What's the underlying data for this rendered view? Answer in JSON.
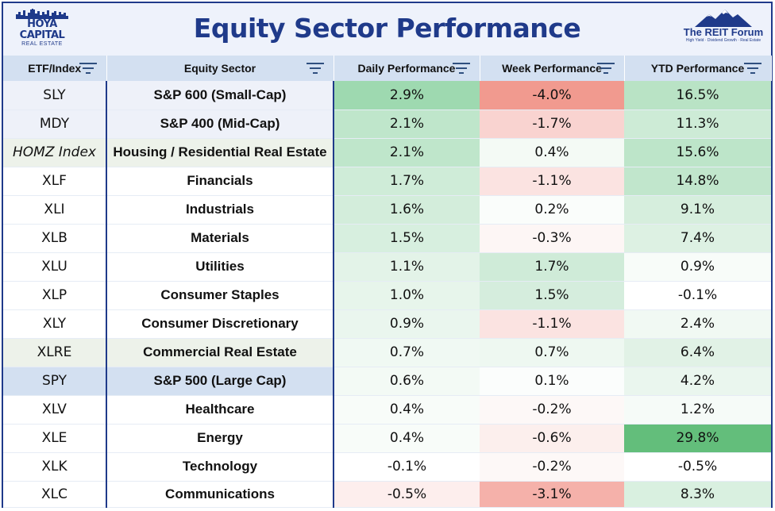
{
  "header": {
    "title": "Equity Sector Performance",
    "left_logo": {
      "brand": "HOYA CAPITAL",
      "sub": "REAL ESTATE",
      "icon": "skyline-icon"
    },
    "right_logo": {
      "brand": "The REIT Forum",
      "sub": "High Yield · Dividend Growth · Real Estate",
      "icon": "mountain-icon"
    }
  },
  "columns": [
    {
      "label": "ETF/Index"
    },
    {
      "label": "Equity Sector"
    },
    {
      "label": "Daily Performance"
    },
    {
      "label": "Week Performance"
    },
    {
      "label": "YTD Performance"
    }
  ],
  "colors": {
    "header_blue": "#1f3a8a",
    "column_header_bg": "#d3e0f1",
    "positive_strong": "#63be7b",
    "negative_strong": "#f8696b"
  },
  "rows": [
    {
      "ticker": "SLY",
      "sector": "S&P 600 (Small-Cap)",
      "daily": "2.9%",
      "week": "-4.0%",
      "ytd": "16.5%",
      "label_bg": "#eef1f9",
      "italic": false,
      "daily_bg": "#9ed9b0",
      "week_bg": "#f19a8f",
      "ytd_bg": "#b9e3c5"
    },
    {
      "ticker": "MDY",
      "sector": "S&P 400 (Mid-Cap)",
      "daily": "2.1%",
      "week": "-1.7%",
      "ytd": "11.3%",
      "label_bg": "#eef1f9",
      "italic": false,
      "daily_bg": "#bfe6cb",
      "week_bg": "#f9d3d0",
      "ytd_bg": "#cdebd6"
    },
    {
      "ticker": "HOMZ Index",
      "sector": "Housing / Residential Real Estate",
      "daily": "2.1%",
      "week": "0.4%",
      "ytd": "15.6%",
      "label_bg": "#edf2ea",
      "italic": true,
      "daily_bg": "#bfe6cb",
      "week_bg": "#f4faf5",
      "ytd_bg": "#bde5c9"
    },
    {
      "ticker": "XLF",
      "sector": "Financials",
      "daily": "1.7%",
      "week": "-1.1%",
      "ytd": "14.8%",
      "label_bg": "#ffffff",
      "italic": false,
      "daily_bg": "#cfecd8",
      "week_bg": "#fbe3e1",
      "ytd_bg": "#c1e6cc"
    },
    {
      "ticker": "XLI",
      "sector": "Industrials",
      "daily": "1.6%",
      "week": "0.2%",
      "ytd": "9.1%",
      "label_bg": "#ffffff",
      "italic": false,
      "daily_bg": "#d3eddb",
      "week_bg": "#fafdfb",
      "ytd_bg": "#d6eedd"
    },
    {
      "ticker": "XLB",
      "sector": "Materials",
      "daily": "1.5%",
      "week": "-0.3%",
      "ytd": "7.4%",
      "label_bg": "#ffffff",
      "italic": false,
      "daily_bg": "#d7efdf",
      "week_bg": "#fdf6f5",
      "ytd_bg": "#ddf1e3"
    },
    {
      "ticker": "XLU",
      "sector": "Utilities",
      "daily": "1.1%",
      "week": "1.7%",
      "ytd": "0.9%",
      "label_bg": "#ffffff",
      "italic": false,
      "daily_bg": "#e3f3e8",
      "week_bg": "#cfebd8",
      "ytd_bg": "#f8fcf9"
    },
    {
      "ticker": "XLP",
      "sector": "Consumer Staples",
      "daily": "1.0%",
      "week": "1.5%",
      "ytd": "-0.1%",
      "label_bg": "#ffffff",
      "italic": false,
      "daily_bg": "#e7f5eb",
      "week_bg": "#d5eddd",
      "ytd_bg": "#ffffff"
    },
    {
      "ticker": "XLY",
      "sector": "Consumer Discretionary",
      "daily": "0.9%",
      "week": "-1.1%",
      "ytd": "2.4%",
      "label_bg": "#ffffff",
      "italic": false,
      "daily_bg": "#eaf6ee",
      "week_bg": "#fbe3e1",
      "ytd_bg": "#f1f9f3"
    },
    {
      "ticker": "XLRE",
      "sector": "Commercial Real Estate",
      "daily": "0.7%",
      "week": "0.7%",
      "ytd": "6.4%",
      "label_bg": "#edf2ea",
      "italic": false,
      "daily_bg": "#f0f9f3",
      "week_bg": "#eef8f1",
      "ytd_bg": "#e1f2e6"
    },
    {
      "ticker": "SPY",
      "sector": "S&P 500 (Large Cap)",
      "daily": "0.6%",
      "week": "0.1%",
      "ytd": "4.2%",
      "label_bg": "#d3e0f1",
      "italic": false,
      "daily_bg": "#f3faf5",
      "week_bg": "#fbfdfc",
      "ytd_bg": "#eaf6ee"
    },
    {
      "ticker": "XLV",
      "sector": "Healthcare",
      "daily": "0.4%",
      "week": "-0.2%",
      "ytd": "1.2%",
      "label_bg": "#ffffff",
      "italic": false,
      "daily_bg": "#f8fcf9",
      "week_bg": "#fdf8f7",
      "ytd_bg": "#f6fbf8"
    },
    {
      "ticker": "XLE",
      "sector": "Energy",
      "daily": "0.4%",
      "week": "-0.6%",
      "ytd": "29.8%",
      "label_bg": "#ffffff",
      "italic": false,
      "daily_bg": "#f8fcf9",
      "week_bg": "#fcefed",
      "ytd_bg": "#63be7b"
    },
    {
      "ticker": "XLK",
      "sector": "Technology",
      "daily": "-0.1%",
      "week": "-0.2%",
      "ytd": "-0.5%",
      "label_bg": "#ffffff",
      "italic": false,
      "daily_bg": "#ffffff",
      "week_bg": "#fdf8f7",
      "ytd_bg": "#ffffff"
    },
    {
      "ticker": "XLC",
      "sector": "Communications",
      "daily": "-0.5%",
      "week": "-3.1%",
      "ytd": "8.3%",
      "label_bg": "#ffffff",
      "italic": false,
      "daily_bg": "#fdeeed",
      "week_bg": "#f5b1aa",
      "ytd_bg": "#d9f0e0"
    }
  ]
}
